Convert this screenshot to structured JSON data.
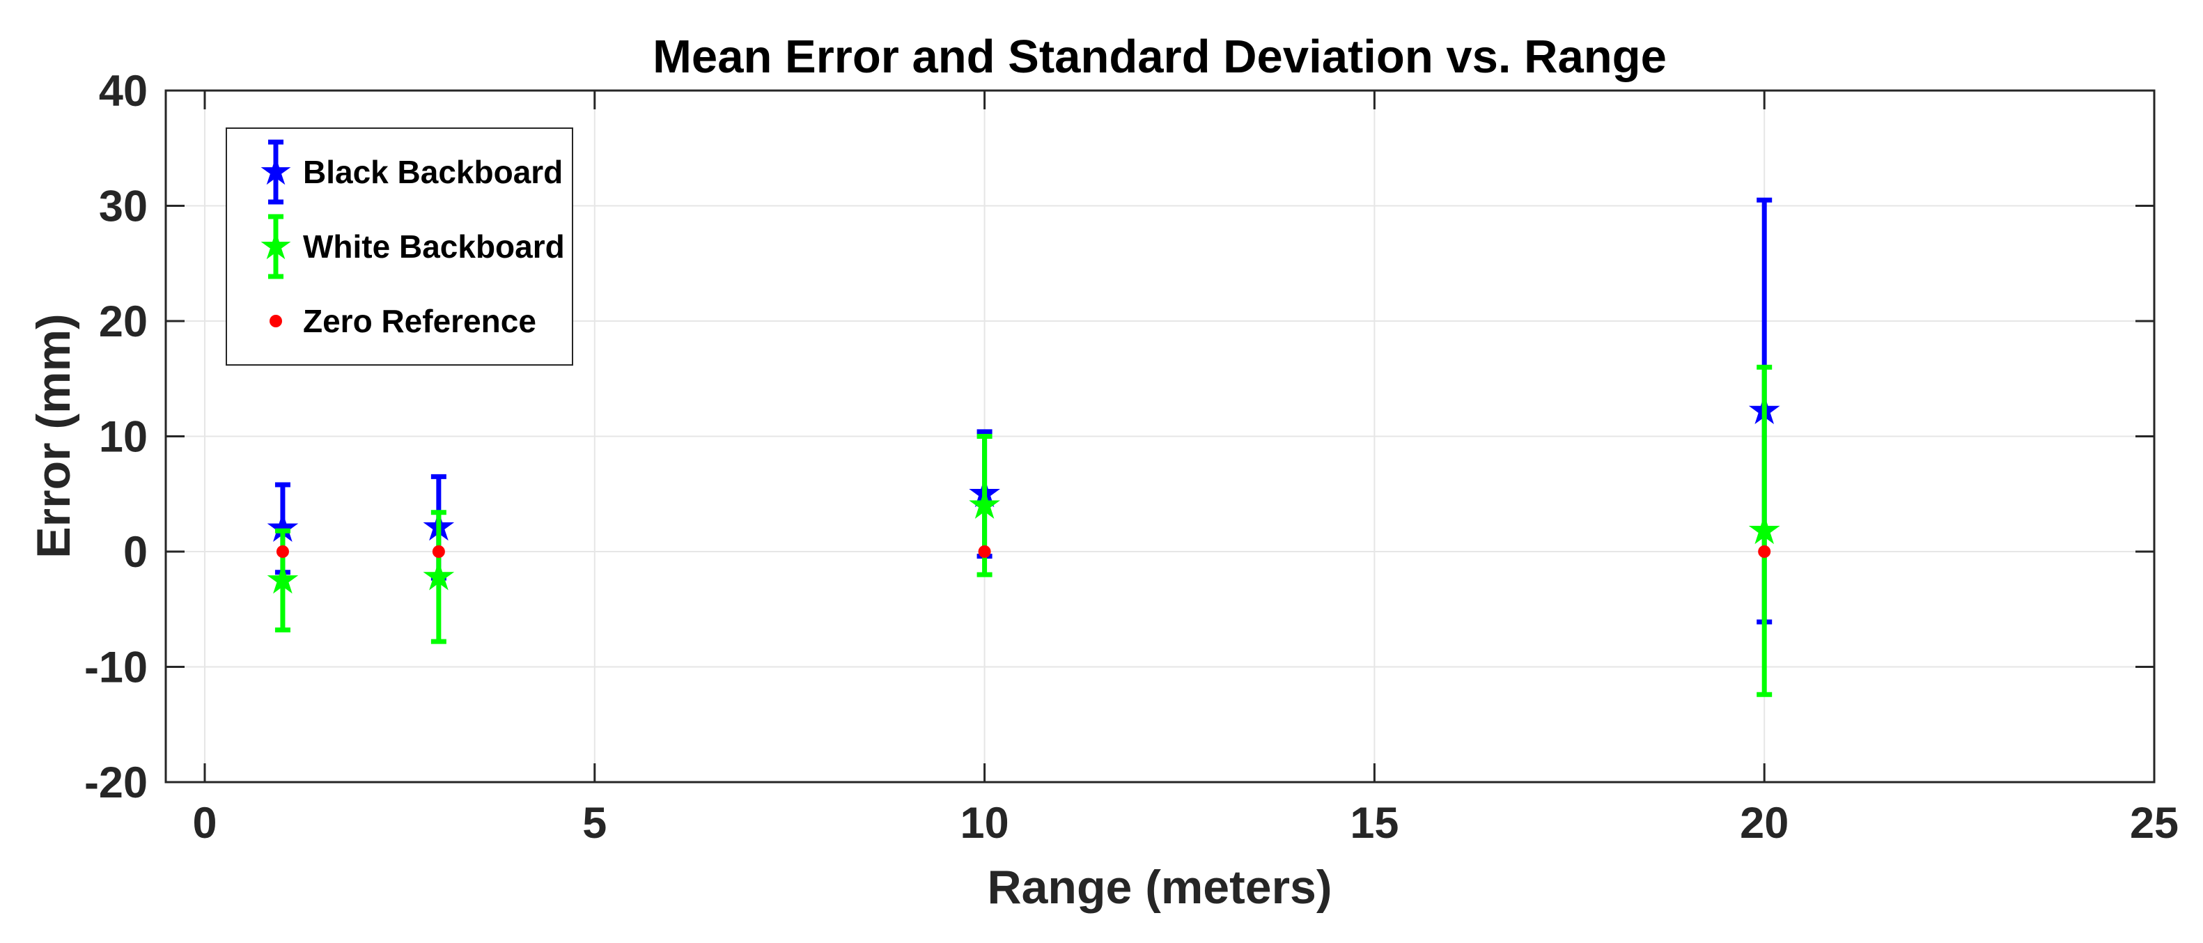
{
  "figure": {
    "background": "#ffffff",
    "spine_color": "#262626",
    "grid_color": "#e6e6e6",
    "text_color": "#262626",
    "title_color": "#000000"
  },
  "chart_data": {
    "type": "scatter",
    "subtype": "errorbar",
    "title": "Mean Error and Standard Deviation vs. Range",
    "xlabel": "Range (meters)",
    "ylabel": "Error (mm)",
    "x": [
      1,
      3,
      10,
      20
    ],
    "series": [
      {
        "name": "Black Backboard",
        "color": "#0000ff",
        "marker": "pentagram",
        "mean": [
          2.0,
          2.1,
          5.0,
          12.2
        ],
        "std": [
          3.8,
          4.4,
          5.4,
          18.3
        ]
      },
      {
        "name": "White Backboard",
        "color": "#00ff00",
        "marker": "pentagram",
        "mean": [
          -2.5,
          -2.2,
          4.0,
          1.8
        ],
        "std": [
          4.3,
          5.6,
          6.0,
          14.2
        ]
      },
      {
        "name": "Zero Reference",
        "color": "#ff0000",
        "marker": "dot",
        "mean": [
          0,
          0,
          0,
          0
        ],
        "std": null
      }
    ],
    "xlim": [
      -0.5,
      25
    ],
    "ylim": [
      -20,
      40
    ],
    "xticks": [
      0,
      5,
      10,
      15,
      20,
      25
    ],
    "yticks": [
      -20,
      -10,
      0,
      10,
      20,
      30,
      40
    ],
    "grid": true,
    "legend_position": "top-left",
    "legend_entries": [
      "Black Backboard",
      "White Backboard",
      "Zero Reference"
    ]
  }
}
